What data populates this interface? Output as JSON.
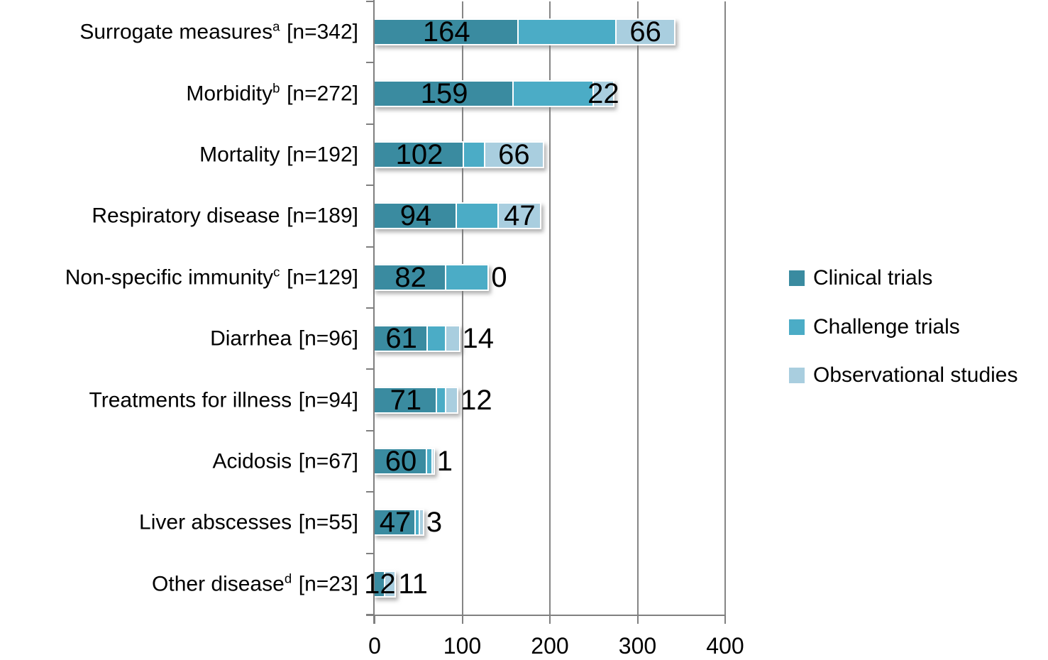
{
  "chart_data": {
    "type": "bar",
    "orientation": "horizontal-stacked",
    "title": "",
    "xlabel": "",
    "ylabel": "",
    "xlim": [
      0,
      400
    ],
    "xticks": [
      "0",
      "100",
      "200",
      "300",
      "400"
    ],
    "grid": true,
    "legend_position": "right-middle",
    "colors": {
      "clinical": "#3A8BA0",
      "challenge": "#4BACC6",
      "observational": "#A9CEDF",
      "gridline": "#858585",
      "axis": "#808080",
      "text": "#000000",
      "segment_outline": "#ffffff",
      "background": "#ffffff"
    },
    "categories": [
      {
        "label": "Surrogate measures",
        "sup": "a",
        "n_label": "[n=342]",
        "n": 342
      },
      {
        "label": "Morbidity",
        "sup": "b",
        "n_label": "[n=272]",
        "n": 272
      },
      {
        "label": "Mortality",
        "sup": "",
        "n_label": "[n=192]",
        "n": 192
      },
      {
        "label": "Respiratory disease",
        "sup": "",
        "n_label": "[n=189]",
        "n": 189
      },
      {
        "label": "Non-specific immunity",
        "sup": "c",
        "n_label": "[n=129]",
        "n": 129
      },
      {
        "label": "Diarrhea",
        "sup": "",
        "n_label": "[n=96]",
        "n": 96
      },
      {
        "label": "Treatments for illness",
        "sup": "",
        "n_label": "[n=94]",
        "n": 94
      },
      {
        "label": "Acidosis",
        "sup": "",
        "n_label": "[n=67]",
        "n": 67
      },
      {
        "label": "Liver abscesses",
        "sup": "",
        "n_label": "[n=55]",
        "n": 55
      },
      {
        "label": "Other disease",
        "sup": "d",
        "n_label": "[n=23]",
        "n": 23
      }
    ],
    "series": [
      {
        "name": "Clinical trials",
        "key": "clinical",
        "values": [
          164,
          159,
          102,
          94,
          82,
          61,
          71,
          60,
          47,
          12
        ],
        "show_labels": true
      },
      {
        "name": "Challenge trials",
        "key": "challenge",
        "values": [
          112,
          91,
          24,
          48,
          47,
          21,
          11,
          6,
          5,
          0
        ],
        "show_labels": false
      },
      {
        "name": "Observational studies",
        "key": "observational",
        "values": [
          66,
          22,
          66,
          47,
          0,
          14,
          12,
          1,
          3,
          11
        ],
        "show_labels": true
      }
    ]
  }
}
